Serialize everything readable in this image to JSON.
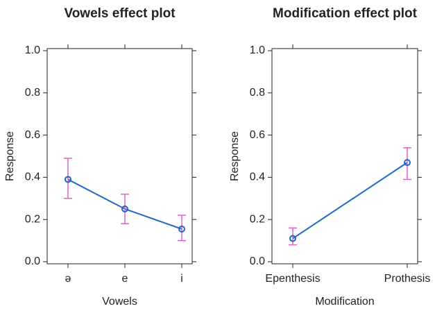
{
  "chart_data": [
    {
      "type": "line",
      "title": "Vowels effect plot",
      "x_label": "Vowels",
      "y_label": "Response",
      "categories": [
        "ə",
        "e",
        "i"
      ],
      "values": [
        0.39,
        0.25,
        0.155
      ],
      "lower": [
        0.3,
        0.18,
        0.1
      ],
      "upper": [
        0.49,
        0.32,
        0.22
      ],
      "color": "#1f66c6",
      "error_color": "#e060c8",
      "ylim": [
        0,
        1
      ],
      "yticks": [
        {
          "value": 0,
          "label": "0.0"
        },
        0.2,
        0.4,
        0.6,
        0.8,
        {
          "value": 1,
          "label": "1.0"
        }
      ]
    },
    {
      "type": "line",
      "title": "Modification effect plot",
      "x_label": "Modification",
      "y_label": "Response",
      "categories": [
        "Epenthesis",
        "Prothesis"
      ],
      "values": [
        0.11,
        0.47
      ],
      "lower": [
        0.08,
        0.39
      ],
      "upper": [
        0.16,
        0.54
      ],
      "color": "#1f66c6",
      "error_color": "#e060c8",
      "ylim": [
        0,
        1
      ],
      "yticks": [
        {
          "value": 0,
          "label": "0.0"
        },
        0.2,
        0.4,
        0.6,
        0.8,
        {
          "value": 1,
          "label": "1.0"
        }
      ]
    }
  ]
}
